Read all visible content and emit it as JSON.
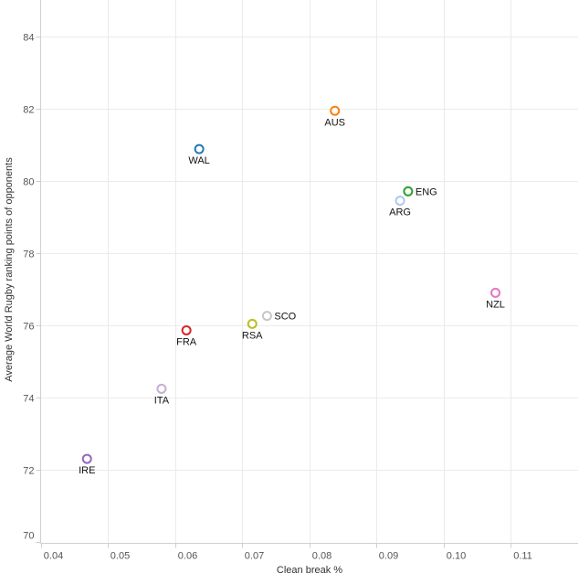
{
  "chart_data": {
    "type": "scatter",
    "title": "",
    "xlabel": "Clean break %",
    "ylabel": "Average World Rugby ranking points of opponents",
    "xlim": [
      0.04,
      0.12
    ],
    "ylim": [
      69.95,
      85.0
    ],
    "xticks": [
      0.04,
      0.05,
      0.06,
      0.07,
      0.08,
      0.09,
      0.1,
      0.11
    ],
    "xtick_labels": [
      "0.04",
      "0.05",
      "0.06",
      "0.07",
      "0.08",
      "0.09",
      "0.10",
      "0.11"
    ],
    "yticks": [
      70,
      72,
      74,
      76,
      78,
      80,
      82,
      84
    ],
    "ytick_labels": [
      "70",
      "72",
      "74",
      "76",
      "78",
      "80",
      "82",
      "84"
    ],
    "grid": true,
    "points": [
      {
        "label": "WAL",
        "x": 0.0636,
        "y": 80.87,
        "color": "#1f77b4",
        "label_pos": "below"
      },
      {
        "label": "AUS",
        "x": 0.0838,
        "y": 81.93,
        "color": "#ff7f0e",
        "label_pos": "below"
      },
      {
        "label": "ENG",
        "x": 0.0947,
        "y": 79.7,
        "color": "#2ca02c",
        "label_pos": "right"
      },
      {
        "label": "ARG",
        "x": 0.0935,
        "y": 79.44,
        "color": "#aec7e8",
        "label_pos": "below"
      },
      {
        "label": "NZL",
        "x": 0.1077,
        "y": 76.89,
        "color": "#e377c2",
        "label_pos": "below"
      },
      {
        "label": "SCO",
        "x": 0.0737,
        "y": 76.25,
        "color": "#c7c7c7",
        "label_pos": "right"
      },
      {
        "label": "RSA",
        "x": 0.0715,
        "y": 76.03,
        "color": "#bcbd22",
        "label_pos": "below"
      },
      {
        "label": "FRA",
        "x": 0.0617,
        "y": 75.85,
        "color": "#d62728",
        "label_pos": "below"
      },
      {
        "label": "ITA",
        "x": 0.058,
        "y": 74.23,
        "color": "#c5b0d5",
        "label_pos": "below"
      },
      {
        "label": "IRE",
        "x": 0.0469,
        "y": 72.29,
        "color": "#9467bd",
        "label_pos": "below"
      }
    ]
  }
}
